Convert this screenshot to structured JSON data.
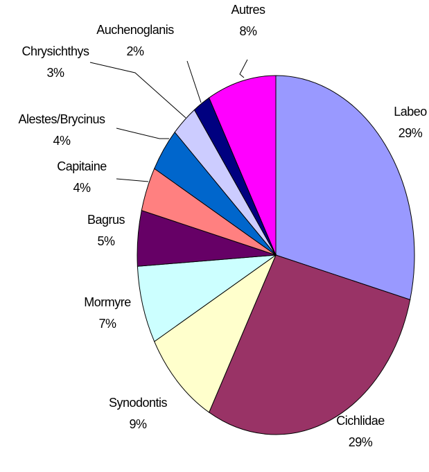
{
  "chart_data": {
    "type": "pie",
    "categories": [
      "Labeo",
      "Cichlidae",
      "Synodontis",
      "Mormyre",
      "Bagrus",
      "Capitaine",
      "Alestes/Brycinus",
      "Chrysichthys",
      "Auchenoglanis",
      "Autres"
    ],
    "values": [
      29,
      29,
      9,
      7,
      5,
      4,
      4,
      3,
      2,
      8
    ],
    "value_labels": [
      "29%",
      "29%",
      "9%",
      "7%",
      "5%",
      "4%",
      "4%",
      "3%",
      "2%",
      "8%"
    ],
    "colors": [
      "#9999ff",
      "#993366",
      "#ffffcc",
      "#ccffff",
      "#660066",
      "#ff8080",
      "#0066cc",
      "#ccccff",
      "#000080",
      "#ff00ff"
    ]
  }
}
